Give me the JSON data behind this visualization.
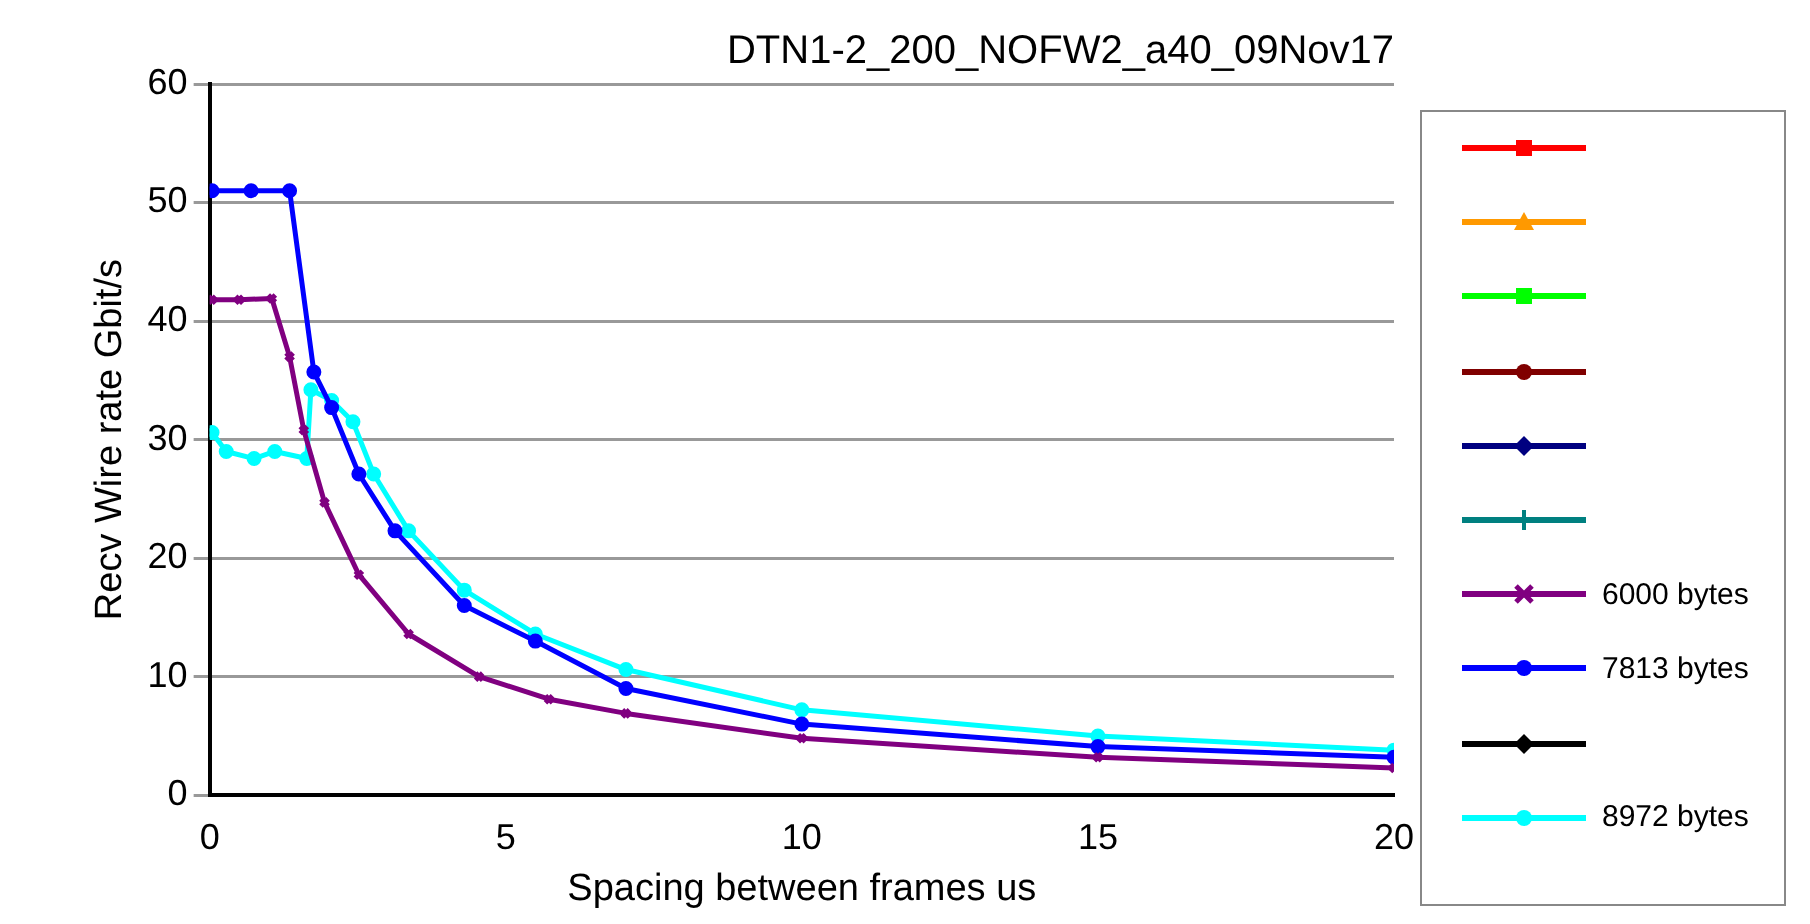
{
  "chart_data": {
    "type": "line",
    "title": "DTN1-2_200_NOFW2_a40_09Nov17",
    "xlabel": "Spacing between frames us",
    "ylabel": "Recv Wire rate Gbit/s",
    "xlim": [
      0,
      20
    ],
    "xticks": [
      0,
      5,
      10,
      15,
      20
    ],
    "ylim": [
      0,
      60
    ],
    "yticks": [
      0,
      10,
      20,
      30,
      40,
      50,
      60
    ],
    "grid": "y",
    "legend": "right",
    "series": [
      {
        "name": "6000 bytes",
        "color": "#800080",
        "marker": "cross",
        "x": [
          0.04,
          0.5,
          1.05,
          1.35,
          1.59,
          1.94,
          2.52,
          3.36,
          4.55,
          5.73,
          7.03,
          10,
          15,
          20
        ],
        "values": [
          41.8,
          41.8,
          41.9,
          37,
          30.8,
          24.7,
          18.6,
          13.6,
          10,
          8.1,
          6.9,
          4.8,
          3.2,
          2.3
        ]
      },
      {
        "name": "7813 bytes",
        "color": "#0000ff",
        "marker": "circle",
        "x": [
          0.04,
          0.7,
          1.35,
          1.76,
          2.06,
          2.52,
          3.13,
          4.3,
          5.5,
          7.03,
          10,
          15,
          20
        ],
        "values": [
          51,
          51,
          51,
          35.7,
          32.7,
          27.1,
          22.3,
          16,
          13,
          9,
          6,
          4.1,
          3.2
        ]
      },
      {
        "name": "8972 bytes",
        "color": "#00ffff",
        "marker": "circle",
        "x": [
          0.04,
          0.28,
          0.75,
          1.1,
          1.64,
          1.71,
          2.06,
          2.42,
          2.77,
          3.36,
          4.3,
          5.5,
          7.03,
          10,
          15,
          20
        ],
        "values": [
          30.6,
          29,
          28.4,
          29,
          28.4,
          34.2,
          33.3,
          31.5,
          27.1,
          22.3,
          17.3,
          13.6,
          10.6,
          7.2,
          5,
          3.8
        ]
      }
    ]
  }
}
